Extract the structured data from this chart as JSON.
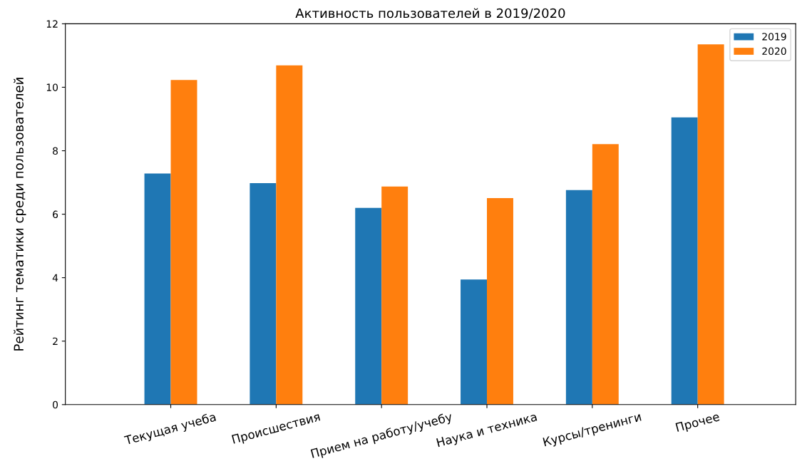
{
  "chart_data": {
    "type": "bar",
    "title": "Активность пользователей в 2019/2020",
    "ylabel": "Рейтинг тематики среди пользователей",
    "categories": [
      "Текущая учеба",
      "Происшествия",
      "Прием на работу/учебу",
      "Наука и техника",
      "Курсы/тренинги",
      "Прочее"
    ],
    "series": [
      {
        "name": "2019",
        "color": "#1f77b4",
        "values": [
          7.28,
          6.98,
          6.2,
          3.94,
          6.76,
          9.05
        ]
      },
      {
        "name": "2020",
        "color": "#ff7f0e",
        "values": [
          10.23,
          10.69,
          6.87,
          6.51,
          8.21,
          11.35
        ]
      }
    ],
    "ylim": [
      0,
      12
    ],
    "yticks": [
      0,
      2,
      4,
      6,
      8,
      10,
      12
    ],
    "grid": false,
    "legend": "top right"
  }
}
